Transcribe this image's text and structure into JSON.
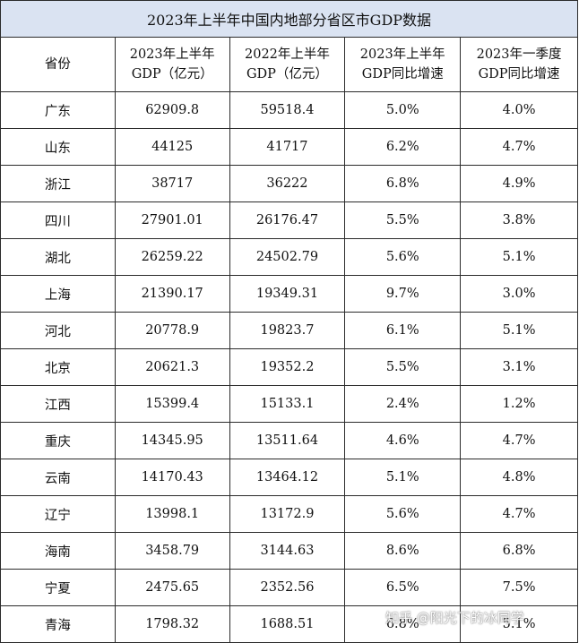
{
  "chart_data": {
    "type": "table",
    "title": "2023年上半年中国内地部分省区市GDP数据",
    "columns": [
      {
        "line1": "省份",
        "line2": ""
      },
      {
        "line1": "2023年上半年",
        "line2": "GDP（亿元）"
      },
      {
        "line1": "2022年上半年",
        "line2": "GDP（亿元）"
      },
      {
        "line1": "2023年上半年",
        "line2": "GDP同比增速"
      },
      {
        "line1": "2023年一季度",
        "line2": "GDP同比增速"
      }
    ],
    "rows": [
      [
        "广东",
        "62909.8",
        "59518.4",
        "5.0%",
        "4.0%"
      ],
      [
        "山东",
        "44125",
        "41717",
        "6.2%",
        "4.7%"
      ],
      [
        "浙江",
        "38717",
        "36222",
        "6.8%",
        "4.9%"
      ],
      [
        "四川",
        "27901.01",
        "26176.47",
        "5.5%",
        "3.8%"
      ],
      [
        "湖北",
        "26259.22",
        "24502.79",
        "5.6%",
        "5.1%"
      ],
      [
        "上海",
        "21390.17",
        "19349.31",
        "9.7%",
        "3.0%"
      ],
      [
        "河北",
        "20778.9",
        "19823.7",
        "6.1%",
        "5.1%"
      ],
      [
        "北京",
        "20621.3",
        "19352.2",
        "5.5%",
        "3.1%"
      ],
      [
        "江西",
        "15399.4",
        "15133.1",
        "2.4%",
        "1.2%"
      ],
      [
        "重庆",
        "14345.95",
        "13511.64",
        "4.6%",
        "4.7%"
      ],
      [
        "云南",
        "14170.43",
        "13464.12",
        "5.1%",
        "4.8%"
      ],
      [
        "辽宁",
        "13998.1",
        "13172.9",
        "5.6%",
        "4.7%"
      ],
      [
        "海南",
        "3458.79",
        "3144.63",
        "8.6%",
        "6.8%"
      ],
      [
        "宁夏",
        "2475.65",
        "2352.56",
        "6.5%",
        "7.5%"
      ],
      [
        "青海",
        "1798.32",
        "1688.51",
        "6.8%",
        "5.1%"
      ]
    ]
  },
  "colors": {
    "title_bg": "#dae3f2",
    "border": "#2b2b2b",
    "text": "#111111"
  },
  "watermark": "知乎 @阳光下的冰同学"
}
